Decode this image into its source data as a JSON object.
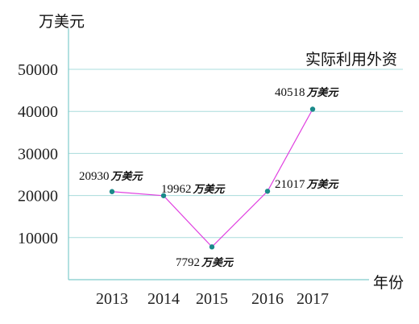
{
  "chart_data": {
    "type": "line",
    "ylabel": "万美元",
    "xlabel": "年份",
    "legend": "实际利用外资",
    "legend_position": "top-right",
    "x": [
      "2013",
      "2014",
      "2015",
      "2016",
      "2017"
    ],
    "y_ticks": [
      "10000",
      "20000",
      "30000",
      "40000",
      "50000"
    ],
    "ylim": [
      0,
      50000
    ],
    "grid": true,
    "series": [
      {
        "name": "实际利用外资",
        "values": [
          20930,
          19962,
          7792,
          21017,
          40518
        ],
        "labels": [
          "20930",
          "19962",
          "7792",
          "21017",
          "40518"
        ],
        "unit": "万美元"
      }
    ],
    "colors": {
      "line": "#e040e0",
      "marker": "#1a8a8a",
      "grid": "#a8dcdc",
      "axis": "#7fcccc"
    }
  }
}
